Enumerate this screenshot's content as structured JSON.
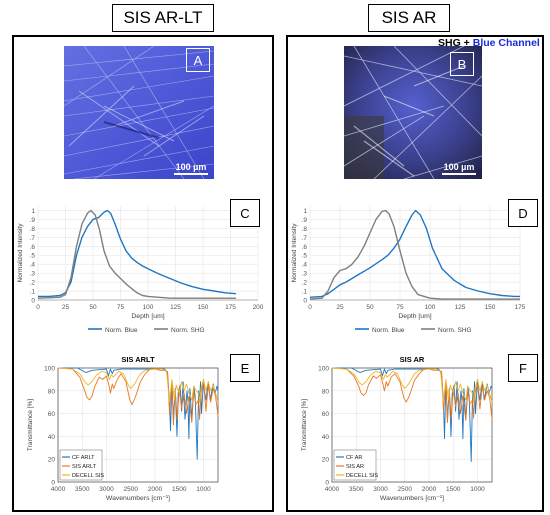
{
  "titles": {
    "left": "SIS AR-LT",
    "right": "SIS AR"
  },
  "overlay": {
    "shg": "SHG + ",
    "blue": "Blue Channel",
    "blue_color": "#1a2bd8"
  },
  "micrographs": [
    {
      "letter": "A",
      "scale": "100 µm"
    },
    {
      "letter": "B",
      "scale": "100 µm"
    }
  ],
  "panel_letters": {
    "C": "C",
    "D": "D",
    "E": "E",
    "F": "F"
  },
  "colors": {
    "blue": "#1f77c4",
    "shg": "#7f7f7f",
    "cf": "#1f77c4",
    "sis": "#e8781e",
    "decell": "#f0b428"
  },
  "chart_data": [
    {
      "id": "C",
      "type": "line",
      "xlabel": "Depth [um]",
      "ylabel": "Normalized Intensity",
      "xlim": [
        0,
        200
      ],
      "ylim": [
        0,
        1.05
      ],
      "xticks": [
        0,
        25,
        50,
        75,
        100,
        125,
        150,
        175,
        200
      ],
      "yticks": [
        0.1,
        0.2,
        0.3,
        0.4,
        0.5,
        0.6,
        0.7,
        0.8,
        0.9,
        1
      ],
      "grid": true,
      "legend": "bottom",
      "series": [
        {
          "name": "Norm. Blue",
          "color": "#1f77c4",
          "x": [
            0,
            10,
            20,
            25,
            30,
            35,
            40,
            45,
            50,
            55,
            60,
            63,
            66,
            70,
            75,
            80,
            85,
            90,
            95,
            100,
            110,
            120,
            130,
            140,
            150,
            160,
            170,
            180
          ],
          "y": [
            0.04,
            0.04,
            0.05,
            0.08,
            0.2,
            0.5,
            0.7,
            0.82,
            0.9,
            0.92,
            0.98,
            1.0,
            0.97,
            0.85,
            0.68,
            0.55,
            0.47,
            0.42,
            0.38,
            0.35,
            0.29,
            0.24,
            0.19,
            0.15,
            0.12,
            0.1,
            0.08,
            0.07
          ]
        },
        {
          "name": "Norm. SHG",
          "color": "#7f7f7f",
          "x": [
            0,
            20,
            25,
            30,
            35,
            40,
            45,
            48,
            52,
            56,
            60,
            65,
            70,
            75,
            80,
            85,
            90,
            95,
            100,
            110,
            120,
            180
          ],
          "y": [
            0.02,
            0.03,
            0.06,
            0.25,
            0.6,
            0.85,
            0.97,
            1.0,
            0.95,
            0.78,
            0.55,
            0.38,
            0.3,
            0.24,
            0.18,
            0.13,
            0.08,
            0.05,
            0.04,
            0.03,
            0.02,
            0.02
          ]
        }
      ]
    },
    {
      "id": "D",
      "type": "line",
      "xlabel": "Depth [um]",
      "ylabel": "Normalized Intensity",
      "xlim": [
        0,
        175
      ],
      "ylim": [
        0,
        1.05
      ],
      "xticks": [
        0,
        25,
        50,
        75,
        100,
        125,
        150,
        175
      ],
      "yticks": [
        0.1,
        0.2,
        0.3,
        0.4,
        0.5,
        0.6,
        0.7,
        0.8,
        0.9,
        1
      ],
      "grid": true,
      "legend": "bottom",
      "series": [
        {
          "name": "Norm. Blue",
          "color": "#1f77c4",
          "x": [
            0,
            10,
            15,
            20,
            25,
            30,
            40,
            50,
            60,
            65,
            70,
            75,
            80,
            85,
            88,
            92,
            97,
            102,
            110,
            120,
            130,
            140,
            150,
            160,
            170,
            175
          ],
          "y": [
            0.03,
            0.04,
            0.07,
            0.12,
            0.17,
            0.2,
            0.28,
            0.36,
            0.45,
            0.5,
            0.58,
            0.68,
            0.82,
            0.95,
            1.0,
            0.95,
            0.8,
            0.58,
            0.35,
            0.22,
            0.14,
            0.1,
            0.07,
            0.05,
            0.04,
            0.04
          ]
        },
        {
          "name": "Norm. SHG",
          "color": "#7f7f7f",
          "x": [
            0,
            10,
            15,
            20,
            25,
            30,
            35,
            40,
            45,
            50,
            55,
            60,
            63,
            66,
            70,
            75,
            80,
            85,
            90,
            100,
            110,
            175
          ],
          "y": [
            0.01,
            0.02,
            0.1,
            0.25,
            0.33,
            0.35,
            0.4,
            0.48,
            0.6,
            0.75,
            0.9,
            0.99,
            1.0,
            0.96,
            0.82,
            0.55,
            0.3,
            0.15,
            0.06,
            0.02,
            0.01,
            0.01
          ]
        }
      ]
    },
    {
      "id": "E",
      "type": "line",
      "title": "SIS ARLT",
      "xlabel": "Wavenumbers [cm⁻¹]",
      "ylabel": "Transmittance [%]",
      "xlim": [
        4000,
        700
      ],
      "ylim": [
        0,
        100
      ],
      "xticks": [
        4000,
        3500,
        3000,
        2500,
        2000,
        1500,
        1000
      ],
      "yticks": [
        0,
        20,
        40,
        60,
        80,
        100
      ],
      "grid": true,
      "legend": "lower-left",
      "series": [
        {
          "name": "CF ARLT",
          "color": "#1f77c4",
          "x": [
            4000,
            3600,
            3420,
            3300,
            3000,
            2960,
            2920,
            2880,
            2850,
            2700,
            2000,
            1800,
            1740,
            1700,
            1680,
            1650,
            1620,
            1580,
            1545,
            1520,
            1480,
            1450,
            1420,
            1380,
            1340,
            1320,
            1300,
            1280,
            1240,
            1200,
            1170,
            1130,
            1100,
            1080,
            1060,
            1040,
            1000,
            980,
            950,
            900,
            860,
            800,
            760,
            720,
            700
          ],
          "y": [
            100,
            100,
            96,
            98,
            99,
            93,
            99,
            95,
            98,
            99,
            99,
            99,
            95,
            70,
            45,
            88,
            55,
            82,
            40,
            78,
            85,
            62,
            88,
            55,
            80,
            72,
            38,
            82,
            55,
            84,
            75,
            20,
            80,
            70,
            88,
            60,
            90,
            80,
            72,
            88,
            72,
            86,
            78,
            84,
            80
          ]
        },
        {
          "name": "SIS ARLT",
          "color": "#e8781e",
          "x": [
            4000,
            3700,
            3550,
            3450,
            3400,
            3350,
            3300,
            3250,
            3150,
            3080,
            3000,
            2950,
            2920,
            2880,
            2850,
            2780,
            2700,
            2600,
            2520,
            2470,
            2400,
            2300,
            2200,
            2100,
            2000,
            1900,
            1800,
            1740,
            1700,
            1650,
            1620,
            1580,
            1540,
            1500,
            1450,
            1400,
            1350,
            1300,
            1240,
            1200,
            1160,
            1100,
            1080,
            1050,
            1000,
            950,
            900,
            850,
            800,
            750,
            700
          ],
          "y": [
            100,
            99,
            92,
            80,
            74,
            72,
            75,
            83,
            92,
            90,
            93,
            85,
            78,
            86,
            82,
            90,
            95,
            88,
            72,
            68,
            75,
            88,
            95,
            99,
            99,
            98,
            98,
            97,
            60,
            88,
            50,
            80,
            55,
            82,
            65,
            78,
            60,
            75,
            52,
            80,
            68,
            72,
            55,
            78,
            88,
            62,
            85,
            70,
            82,
            75,
            58
          ]
        },
        {
          "name": "DECELL SIS",
          "color": "#f0b428",
          "x": [
            4000,
            3700,
            3550,
            3450,
            3380,
            3300,
            3200,
            3100,
            3000,
            2940,
            2900,
            2860,
            2750,
            2650,
            2550,
            2500,
            2420,
            2300,
            2200,
            2000,
            1850,
            1760,
            1700,
            1650,
            1600,
            1560,
            1500,
            1450,
            1400,
            1350,
            1300,
            1240,
            1200,
            1150,
            1100,
            1080,
            1050,
            1000,
            950,
            900,
            850,
            800,
            750,
            700
          ],
          "y": [
            100,
            99,
            95,
            88,
            85,
            88,
            94,
            97,
            96,
            90,
            94,
            92,
            97,
            95,
            85,
            82,
            86,
            95,
            98,
            99,
            99,
            97,
            70,
            90,
            72,
            85,
            78,
            88,
            80,
            86,
            78,
            72,
            84,
            80,
            78,
            70,
            82,
            90,
            80,
            88,
            80,
            85,
            78,
            70
          ]
        }
      ]
    },
    {
      "id": "F",
      "type": "line",
      "title": "SIS AR",
      "xlabel": "Wavenumbers [cm⁻¹]",
      "ylabel": "Transmittance [%]",
      "xlim": [
        4000,
        700
      ],
      "ylim": [
        0,
        100
      ],
      "xticks": [
        4000,
        3500,
        3000,
        2500,
        2000,
        1500,
        1000
      ],
      "yticks": [
        0,
        20,
        40,
        60,
        80,
        100
      ],
      "grid": true,
      "legend": "lower-left",
      "series": [
        {
          "name": "CF AR",
          "color": "#1f77c4",
          "x": [
            4000,
            3600,
            3420,
            3300,
            3000,
            2960,
            2920,
            2880,
            2850,
            2700,
            2000,
            1800,
            1740,
            1700,
            1680,
            1650,
            1620,
            1580,
            1545,
            1520,
            1480,
            1450,
            1420,
            1380,
            1340,
            1320,
            1300,
            1280,
            1240,
            1200,
            1170,
            1130,
            1100,
            1080,
            1060,
            1040,
            1000,
            980,
            950,
            900,
            860,
            800,
            760,
            720,
            700
          ],
          "y": [
            100,
            100,
            96,
            98,
            99,
            93,
            99,
            95,
            98,
            99,
            99,
            99,
            95,
            70,
            38,
            88,
            55,
            82,
            40,
            78,
            85,
            62,
            88,
            55,
            80,
            72,
            38,
            82,
            55,
            84,
            75,
            18,
            80,
            70,
            88,
            60,
            90,
            80,
            72,
            88,
            72,
            86,
            78,
            84,
            82
          ]
        },
        {
          "name": "SIS AR",
          "color": "#e8781e",
          "x": [
            4000,
            3700,
            3550,
            3450,
            3400,
            3350,
            3300,
            3250,
            3150,
            3080,
            3000,
            2950,
            2920,
            2880,
            2850,
            2780,
            2700,
            2600,
            2520,
            2470,
            2400,
            2300,
            2200,
            2100,
            2000,
            1900,
            1800,
            1740,
            1700,
            1650,
            1620,
            1580,
            1540,
            1500,
            1450,
            1400,
            1350,
            1300,
            1240,
            1200,
            1160,
            1100,
            1080,
            1050,
            1000,
            950,
            900,
            850,
            800,
            750,
            700
          ],
          "y": [
            100,
            99,
            93,
            84,
            78,
            76,
            78,
            85,
            93,
            91,
            94,
            86,
            80,
            88,
            84,
            92,
            95,
            88,
            74,
            70,
            76,
            89,
            95,
            99,
            99,
            98,
            98,
            97,
            62,
            88,
            52,
            80,
            56,
            82,
            66,
            78,
            60,
            76,
            54,
            80,
            68,
            72,
            56,
            78,
            86,
            64,
            84,
            72,
            80,
            74,
            55
          ]
        },
        {
          "name": "DECELL SIS",
          "color": "#f0b428",
          "x": [
            4000,
            3700,
            3550,
            3450,
            3380,
            3300,
            3200,
            3100,
            3000,
            2940,
            2900,
            2860,
            2750,
            2650,
            2550,
            2500,
            2420,
            2300,
            2200,
            2000,
            1850,
            1760,
            1700,
            1650,
            1600,
            1560,
            1500,
            1450,
            1400,
            1350,
            1300,
            1240,
            1200,
            1150,
            1100,
            1080,
            1050,
            1000,
            950,
            900,
            850,
            800,
            750,
            700
          ],
          "y": [
            100,
            99,
            95,
            88,
            85,
            88,
            94,
            97,
            96,
            90,
            94,
            92,
            97,
            95,
            85,
            82,
            86,
            95,
            98,
            99,
            99,
            97,
            70,
            90,
            72,
            85,
            78,
            88,
            80,
            86,
            78,
            72,
            84,
            80,
            78,
            70,
            82,
            90,
            80,
            88,
            80,
            85,
            78,
            70
          ]
        }
      ]
    }
  ]
}
